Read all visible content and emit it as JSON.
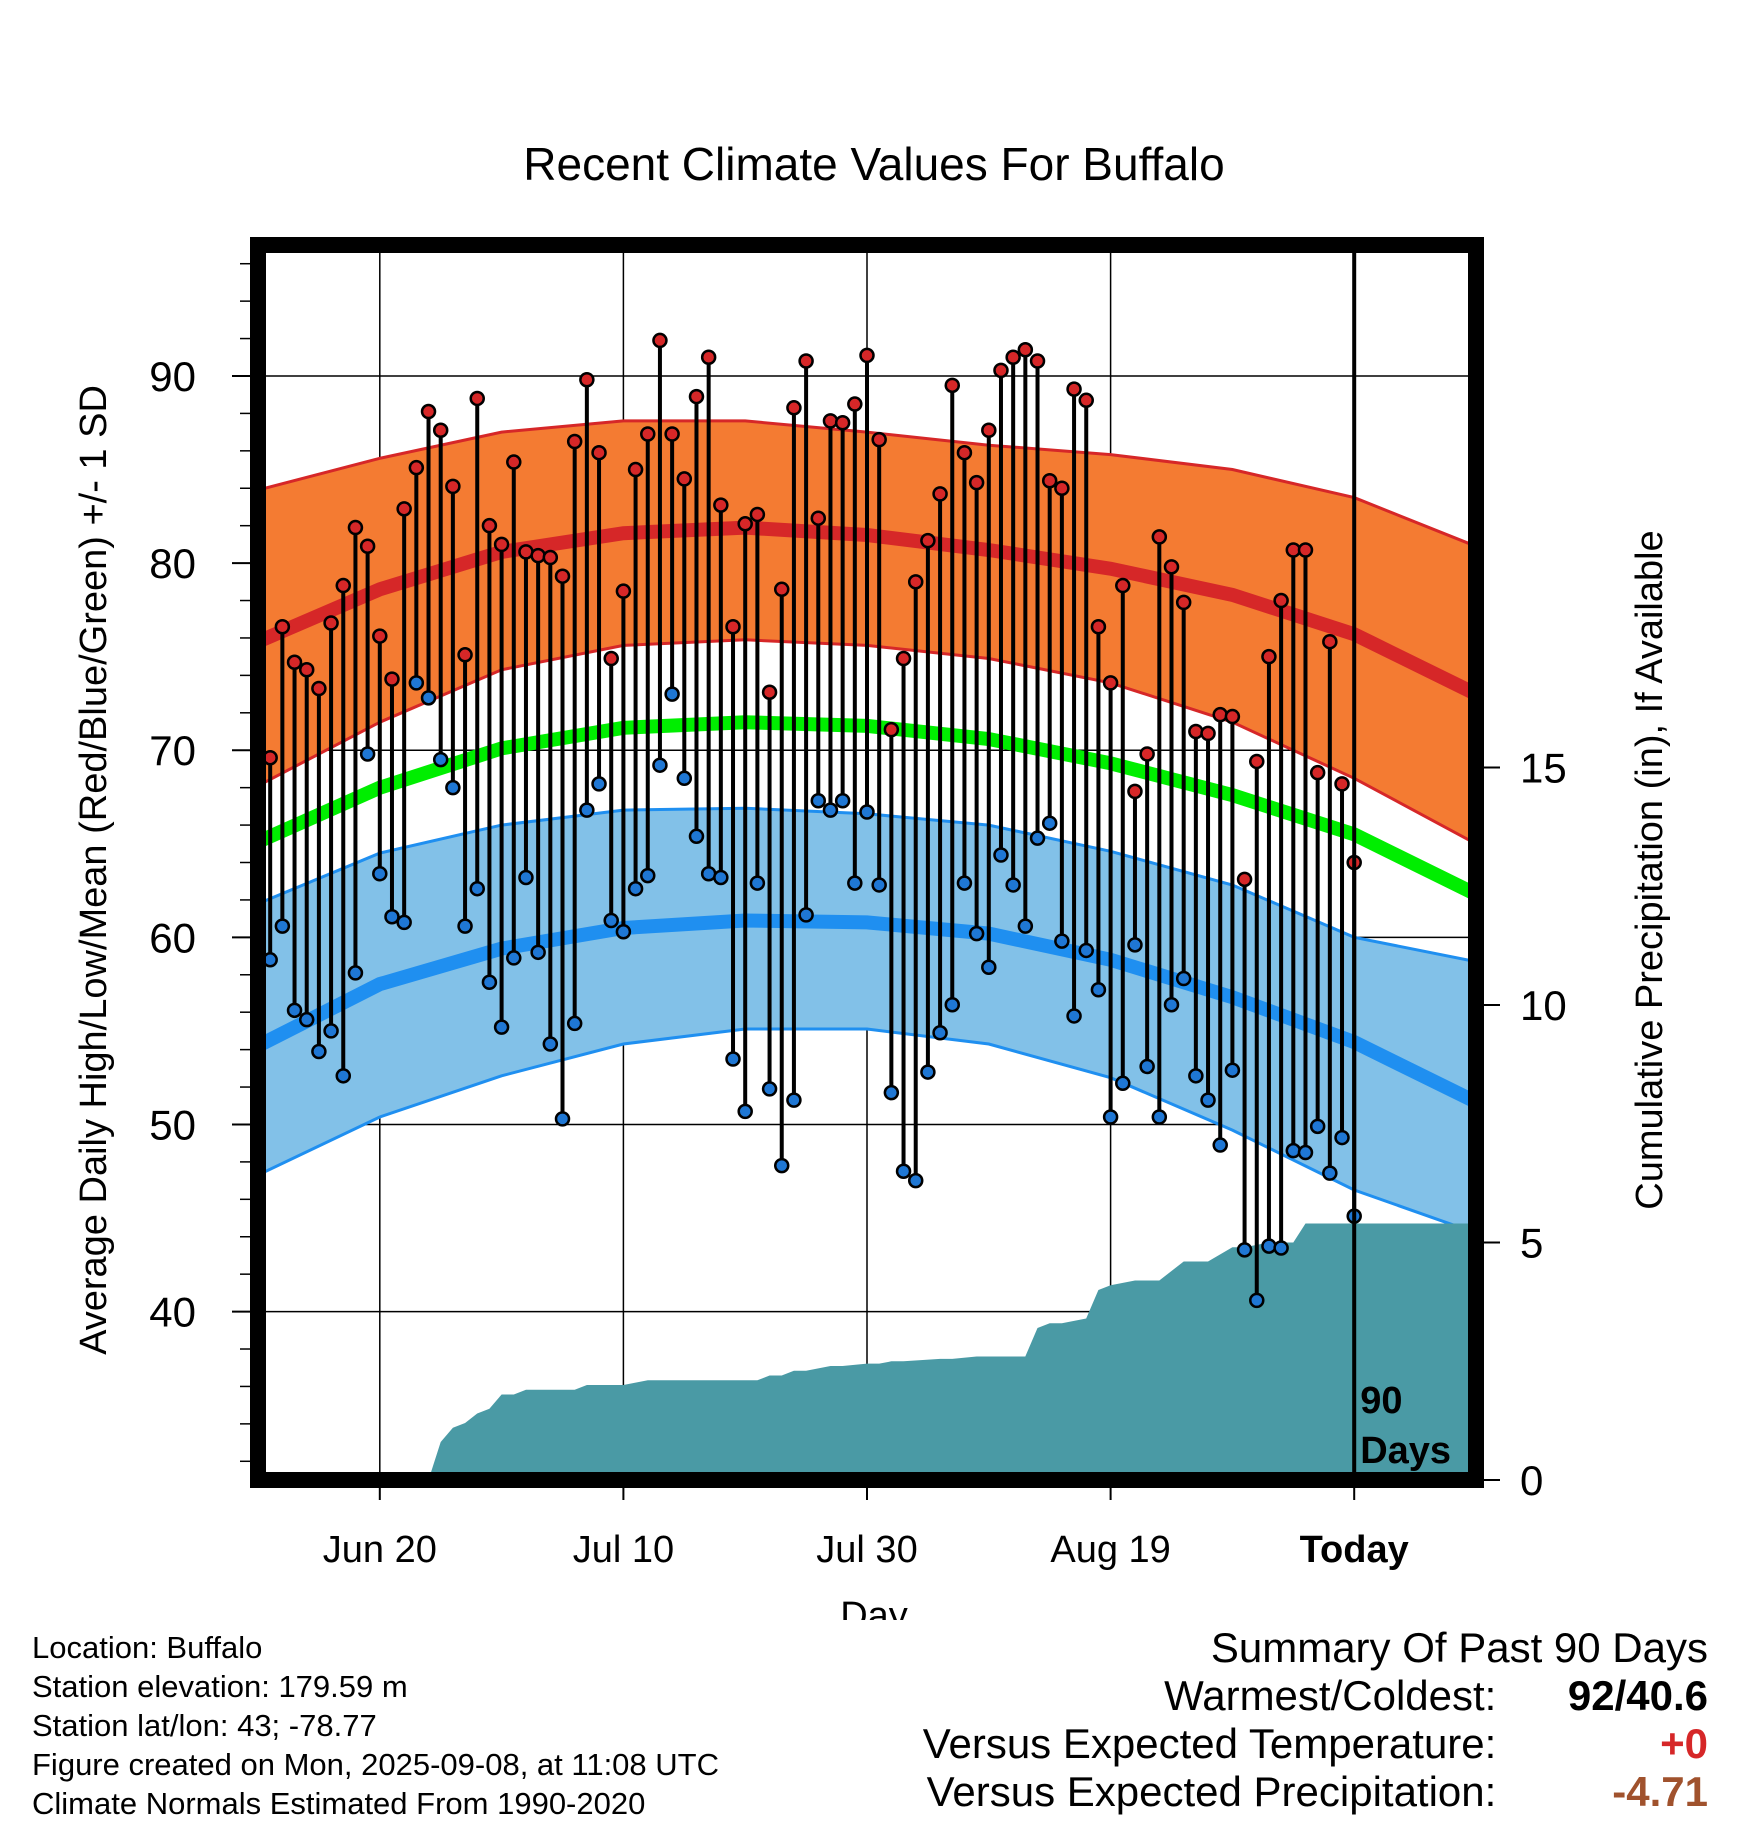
{
  "chart_data": {
    "type": "line",
    "title": "Recent Climate Values For Buffalo",
    "xlabel": "Day",
    "ylabel_left": "Average Daily High/Low/Mean (Red/Blue/Green) +/- 1 SD",
    "ylabel_right": "Cumulative Precipitation (in), If Available",
    "x_ticks": [
      {
        "day": 9,
        "label": "Jun 20"
      },
      {
        "day": 29,
        "label": "Jul 10"
      },
      {
        "day": 49,
        "label": "Jul 30"
      },
      {
        "day": 69,
        "label": "Aug 19"
      },
      {
        "day": 89,
        "label": "Today"
      }
    ],
    "xlim": [
      -1,
      99
    ],
    "today_day": 89,
    "today_annotation": "90\nDays",
    "ylim_left": [
      31,
      97
    ],
    "y_ticks_left": [
      40,
      50,
      60,
      70,
      80,
      90
    ],
    "ylim_right": [
      0,
      26
    ],
    "y_ticks_right": [
      0,
      5,
      10,
      15
    ],
    "normals": {
      "days": [
        -1,
        9,
        19,
        29,
        39,
        49,
        59,
        69,
        79,
        89,
        99
      ],
      "high": [
        75.8,
        78.6,
        80.6,
        81.6,
        81.9,
        81.5,
        80.7,
        79.7,
        78.3,
        76.2,
        73.0
      ],
      "high_upper": [
        83.9,
        85.6,
        87.0,
        87.6,
        87.6,
        87.0,
        86.3,
        85.8,
        85.0,
        83.5,
        80.9
      ],
      "high_lower": [
        68.1,
        71.5,
        74.3,
        75.6,
        75.9,
        75.6,
        74.9,
        73.6,
        71.5,
        68.5,
        65.0
      ],
      "mean": [
        65.1,
        68.0,
        70.1,
        71.2,
        71.5,
        71.3,
        70.6,
        69.3,
        67.6,
        65.5,
        62.3
      ],
      "low": [
        54.2,
        57.5,
        59.4,
        60.5,
        60.9,
        60.8,
        60.2,
        58.8,
        56.8,
        54.4,
        51.2
      ],
      "low_upper": [
        61.8,
        64.5,
        66.0,
        66.8,
        66.9,
        66.6,
        66.0,
        64.6,
        62.8,
        60.0,
        58.7
      ],
      "low_lower": [
        47.3,
        50.4,
        52.6,
        54.3,
        55.1,
        55.1,
        54.3,
        52.5,
        49.7,
        46.5,
        44.2
      ]
    },
    "series": [
      {
        "name": "High",
        "color": "#d62728",
        "values": [
          69.6,
          76.6,
          74.7,
          74.3,
          73.3,
          76.8,
          78.8,
          81.9,
          80.9,
          76.1,
          73.8,
          82.9,
          85.1,
          88.1,
          87.1,
          84.1,
          75.1,
          88.8,
          82.0,
          81.0,
          85.4,
          80.6,
          80.4,
          80.3,
          79.3,
          86.5,
          89.8,
          85.9,
          74.9,
          78.5,
          85.0,
          86.9,
          91.9,
          86.9,
          84.5,
          88.9,
          91.0,
          83.1,
          76.6,
          82.1,
          82.6,
          73.1,
          78.6,
          88.3,
          90.8,
          82.4,
          87.6,
          87.5,
          88.5,
          91.1,
          86.6,
          71.1,
          74.9,
          79.0,
          81.2,
          83.7,
          89.5,
          85.9,
          84.3,
          87.1,
          90.3,
          91.0,
          91.4,
          90.8,
          84.4,
          84.0,
          89.3,
          88.7,
          76.6,
          73.6,
          78.8,
          67.8,
          69.8,
          81.4,
          79.8,
          77.9,
          71.0,
          70.9,
          71.9,
          71.8,
          63.1,
          69.4,
          75.0,
          78.0,
          80.7,
          80.7,
          68.8,
          75.8,
          68.2,
          64.0
        ]
      },
      {
        "name": "Low",
        "color": "#1f77d4",
        "values": [
          58.8,
          60.6,
          56.1,
          55.6,
          53.9,
          55.0,
          52.6,
          58.1,
          69.8,
          63.4,
          61.1,
          60.8,
          73.6,
          72.8,
          69.5,
          68.0,
          60.6,
          62.6,
          57.6,
          55.2,
          58.9,
          63.2,
          59.2,
          54.3,
          50.3,
          55.4,
          66.8,
          68.2,
          60.9,
          60.3,
          62.6,
          63.3,
          69.2,
          73.0,
          68.5,
          65.4,
          63.4,
          63.2,
          53.5,
          50.7,
          62.9,
          51.9,
          47.8,
          51.3,
          61.2,
          67.3,
          66.8,
          67.3,
          62.9,
          66.7,
          62.8,
          51.7,
          47.5,
          47.0,
          52.8,
          54.9,
          56.4,
          62.9,
          60.2,
          58.4,
          64.4,
          62.8,
          60.6,
          65.3,
          66.1,
          59.8,
          55.8,
          59.3,
          57.2,
          50.4,
          52.2,
          59.6,
          53.1,
          50.4,
          56.4,
          57.8,
          52.6,
          51.3,
          48.9,
          52.9,
          43.3,
          40.6,
          43.5,
          43.4,
          48.6,
          48.5,
          49.9,
          47.4,
          49.3,
          45.1
        ]
      }
    ],
    "precipitation": {
      "name": "Cumulative Precipitation",
      "color": "#4a9aa5",
      "days": [
        -1,
        13,
        14,
        15,
        16,
        17,
        18,
        19,
        20,
        21,
        25,
        26,
        29,
        30,
        31,
        32,
        40,
        41,
        42,
        43,
        44,
        46,
        47,
        49,
        50,
        51,
        52,
        55,
        56,
        58,
        59,
        62,
        63,
        64,
        65,
        67,
        68,
        69,
        71,
        73,
        74,
        75,
        77,
        79,
        80,
        82,
        84,
        85,
        88,
        89,
        99
      ],
      "values": [
        0,
        0,
        0.8,
        1.1,
        1.2,
        1.4,
        1.5,
        1.8,
        1.8,
        1.9,
        1.9,
        2.0,
        2.0,
        2.05,
        2.1,
        2.1,
        2.1,
        2.2,
        2.2,
        2.3,
        2.3,
        2.4,
        2.4,
        2.45,
        2.45,
        2.5,
        2.5,
        2.55,
        2.55,
        2.6,
        2.6,
        2.6,
        3.2,
        3.3,
        3.3,
        3.4,
        4.0,
        4.1,
        4.2,
        4.2,
        4.4,
        4.6,
        4.6,
        4.9,
        4.9,
        5.0,
        5.0,
        5.4,
        5.4,
        5.4,
        5.4
      ]
    }
  },
  "footer": {
    "location": "Location: Buffalo",
    "elevation": "Station elevation: 179.59 m",
    "latlon": "Station lat/lon: 43; -78.77",
    "created": "Figure created on Mon, 2025-09-08, at 11:08 UTC",
    "normals": "Climate Normals Estimated From 1990-2020"
  },
  "summary": {
    "title": "Summary Of Past 90 Days",
    "warmest_label": "Warmest/Coldest:",
    "warmest_value_a": "92",
    "warmest_sep": "/",
    "warmest_value_b": "40.6",
    "temp_label": "Versus Expected Temperature:",
    "temp_value": "+0",
    "temp_color": "#d62728",
    "precip_label": "Versus Expected Precipitation:",
    "precip_value": "-4.71",
    "precip_color": "#a0522d"
  }
}
